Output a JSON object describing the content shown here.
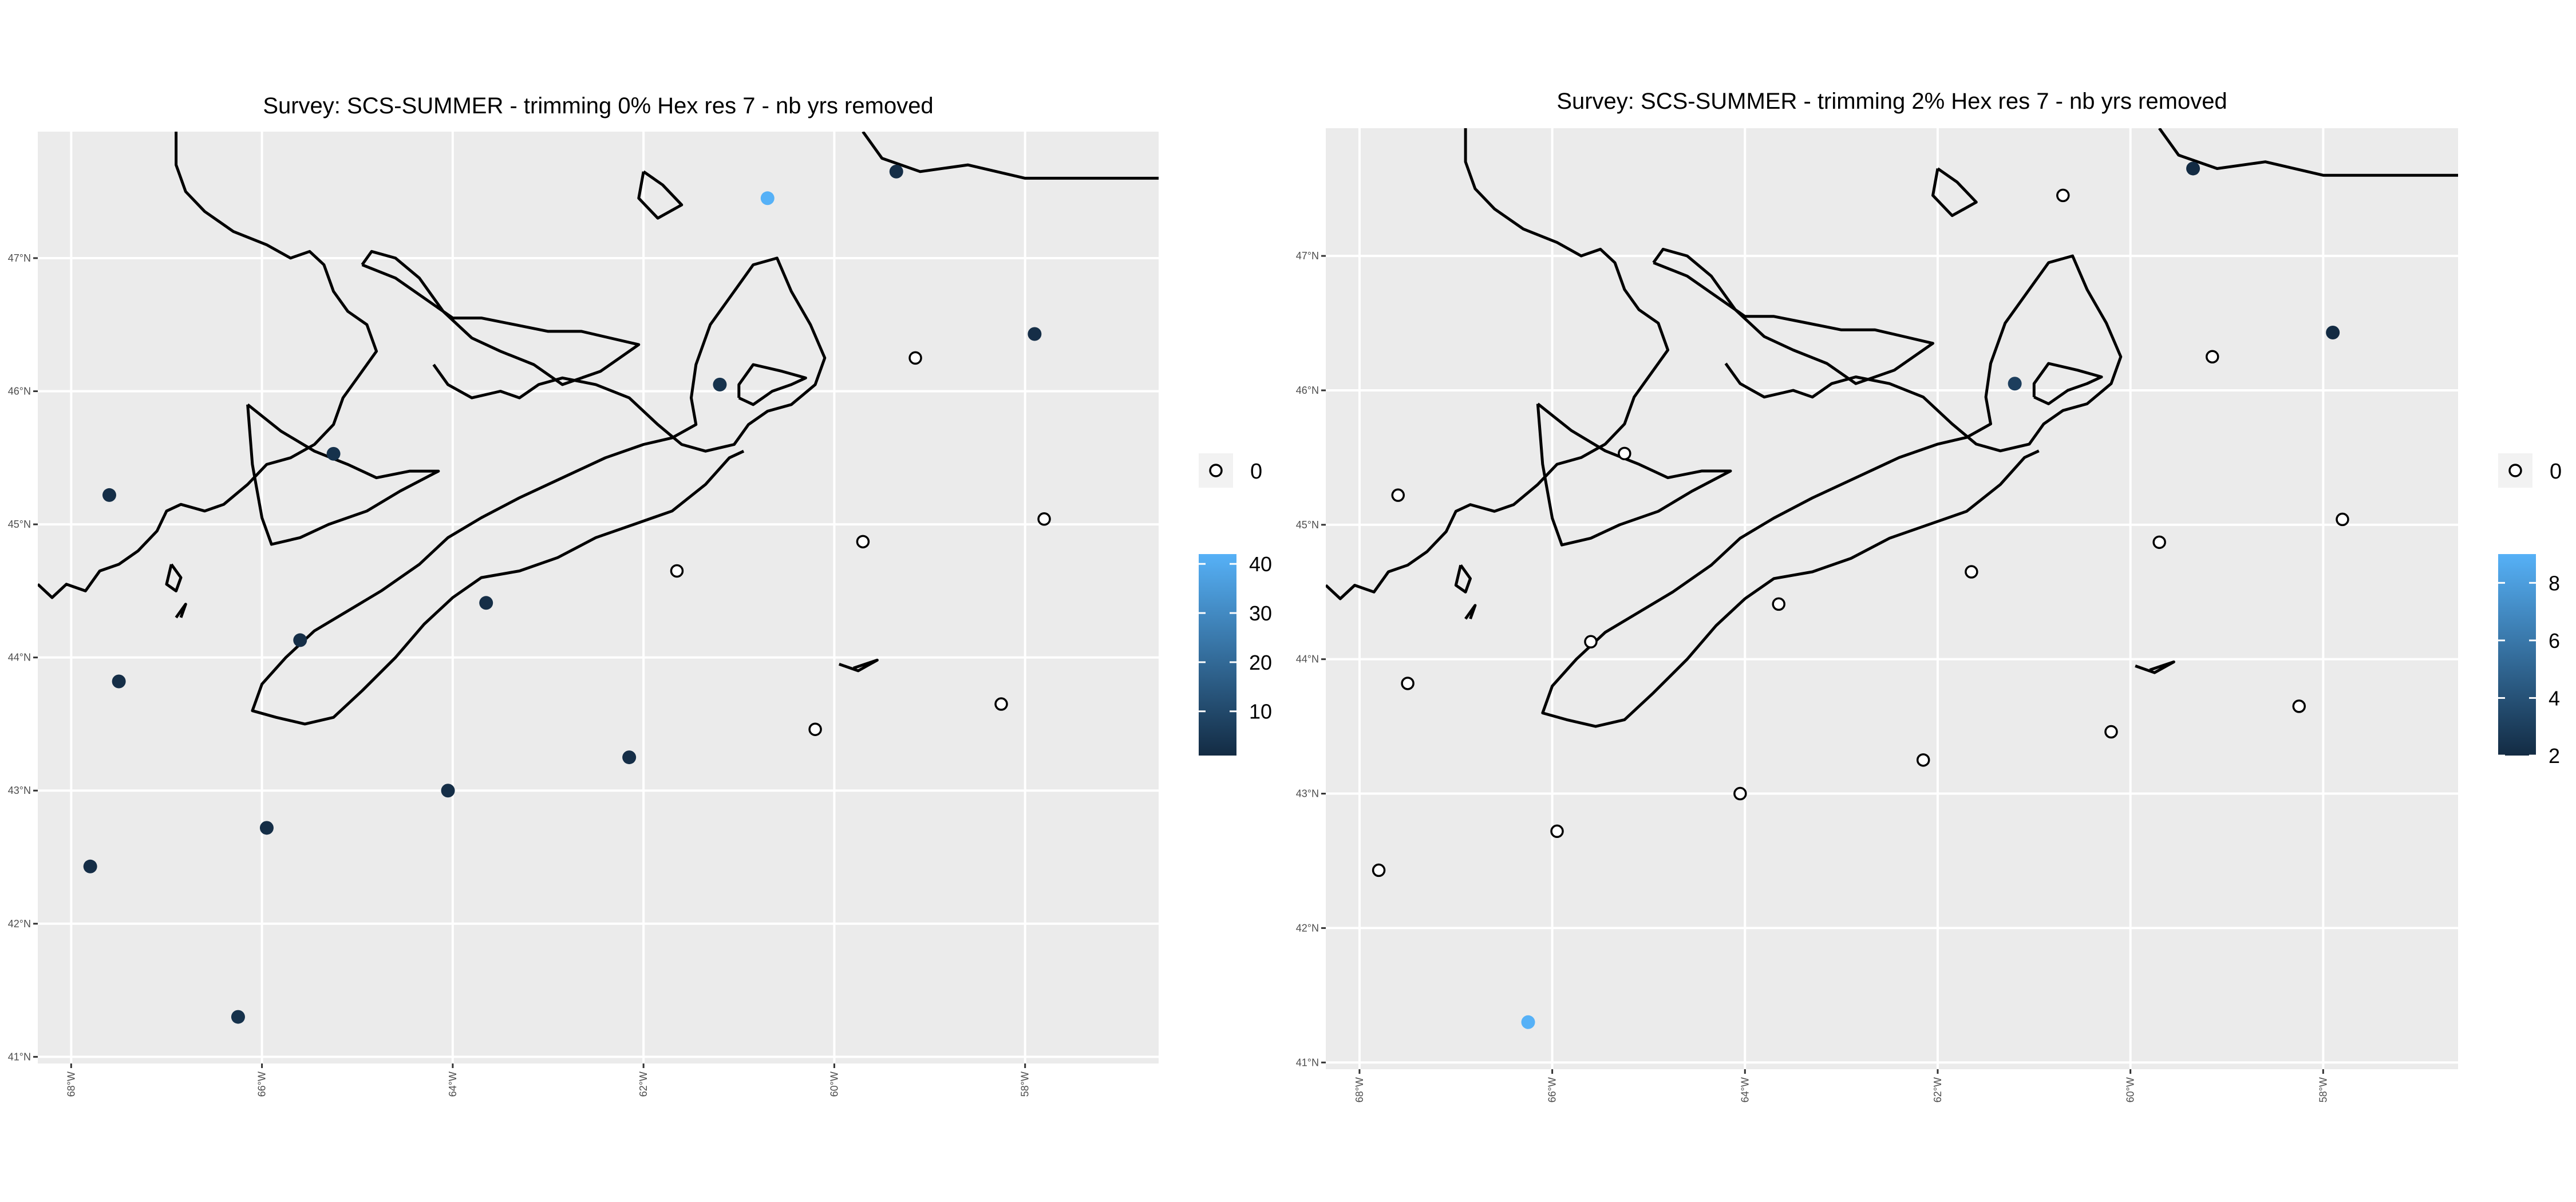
{
  "colors": {
    "panel_bg": "#ebebeb",
    "grid": "#ffffff",
    "coast": "#000000",
    "low": "#132b43",
    "high": "#56b1f7",
    "zero_fill": "#ffffff"
  },
  "map_extent": {
    "lon": [
      -68.35,
      -56.6
    ],
    "lat": [
      40.95,
      47.95
    ]
  },
  "lon_ticks": [
    -68,
    -66,
    -64,
    -62,
    -60,
    -58
  ],
  "lon_labels": [
    "68°W",
    "66°W",
    "64°W",
    "62°W",
    "60°W",
    "58°W"
  ],
  "lat_ticks": [
    41,
    42,
    43,
    44,
    45,
    46,
    47
  ],
  "lat_labels": [
    "41°N",
    "42°N",
    "43°N",
    "44°N",
    "45°N",
    "46°N",
    "47°N"
  ],
  "coastlines": [
    [
      [
        -68.35,
        44.55
      ],
      [
        -68.2,
        44.45
      ],
      [
        -68.05,
        44.55
      ],
      [
        -67.85,
        44.5
      ],
      [
        -67.7,
        44.65
      ],
      [
        -67.5,
        44.7
      ],
      [
        -67.3,
        44.8
      ],
      [
        -67.1,
        44.95
      ],
      [
        -67.0,
        45.1
      ],
      [
        -66.85,
        45.15
      ],
      [
        -66.6,
        45.1
      ],
      [
        -66.4,
        45.15
      ],
      [
        -66.15,
        45.3
      ],
      [
        -65.95,
        45.45
      ],
      [
        -65.7,
        45.5
      ],
      [
        -65.45,
        45.6
      ],
      [
        -65.25,
        45.75
      ],
      [
        -65.15,
        45.95
      ],
      [
        -65.0,
        46.1
      ],
      [
        -64.8,
        46.3
      ],
      [
        -64.9,
        46.5
      ],
      [
        -65.1,
        46.6
      ],
      [
        -65.25,
        46.75
      ],
      [
        -65.35,
        46.95
      ],
      [
        -65.5,
        47.05
      ],
      [
        -65.7,
        47.0
      ],
      [
        -65.95,
        47.1
      ],
      [
        -66.3,
        47.2
      ],
      [
        -66.6,
        47.35
      ],
      [
        -66.8,
        47.5
      ],
      [
        -66.9,
        47.7
      ],
      [
        -66.9,
        47.95
      ]
    ],
    [
      [
        -64.2,
        46.2
      ],
      [
        -64.05,
        46.05
      ],
      [
        -63.8,
        45.95
      ],
      [
        -63.5,
        46.0
      ],
      [
        -63.3,
        45.95
      ],
      [
        -63.1,
        46.05
      ],
      [
        -62.85,
        46.1
      ],
      [
        -62.5,
        46.05
      ],
      [
        -62.15,
        45.95
      ],
      [
        -61.85,
        45.75
      ],
      [
        -61.6,
        45.6
      ],
      [
        -61.35,
        45.55
      ],
      [
        -61.05,
        45.6
      ],
      [
        -60.9,
        45.75
      ],
      [
        -60.7,
        45.85
      ],
      [
        -60.45,
        45.9
      ],
      [
        -60.2,
        46.05
      ],
      [
        -60.1,
        46.25
      ],
      [
        -60.25,
        46.5
      ],
      [
        -60.45,
        46.75
      ],
      [
        -60.6,
        47.0
      ],
      [
        -60.85,
        46.95
      ],
      [
        -61.05,
        46.75
      ],
      [
        -61.3,
        46.5
      ],
      [
        -61.45,
        46.2
      ],
      [
        -61.5,
        45.95
      ],
      [
        -61.45,
        45.75
      ],
      [
        -61.7,
        45.65
      ],
      [
        -62.0,
        45.6
      ],
      [
        -62.4,
        45.5
      ],
      [
        -62.85,
        45.35
      ],
      [
        -63.3,
        45.2
      ],
      [
        -63.7,
        45.05
      ],
      [
        -64.05,
        44.9
      ],
      [
        -64.35,
        44.7
      ],
      [
        -64.75,
        44.5
      ],
      [
        -65.1,
        44.35
      ],
      [
        -65.45,
        44.2
      ],
      [
        -65.75,
        44.0
      ],
      [
        -66.0,
        43.8
      ],
      [
        -66.1,
        43.6
      ],
      [
        -65.85,
        43.55
      ],
      [
        -65.55,
        43.5
      ],
      [
        -65.25,
        43.55
      ],
      [
        -64.95,
        43.75
      ],
      [
        -64.6,
        44.0
      ],
      [
        -64.3,
        44.25
      ],
      [
        -64.0,
        44.45
      ],
      [
        -63.7,
        44.6
      ],
      [
        -63.3,
        44.65
      ],
      [
        -62.9,
        44.75
      ],
      [
        -62.5,
        44.9
      ],
      [
        -62.1,
        45.0
      ],
      [
        -61.7,
        45.1
      ],
      [
        -61.35,
        45.3
      ],
      [
        -61.1,
        45.5
      ],
      [
        -60.95,
        45.55
      ]
    ],
    [
      [
        -64.95,
        46.95
      ],
      [
        -64.6,
        46.85
      ],
      [
        -64.3,
        46.7
      ],
      [
        -64.0,
        46.55
      ],
      [
        -63.7,
        46.55
      ],
      [
        -63.35,
        46.5
      ],
      [
        -63.0,
        46.45
      ],
      [
        -62.65,
        46.45
      ],
      [
        -62.35,
        46.4
      ],
      [
        -62.05,
        46.35
      ],
      [
        -62.45,
        46.15
      ],
      [
        -62.85,
        46.05
      ],
      [
        -63.15,
        46.2
      ],
      [
        -63.5,
        46.3
      ],
      [
        -63.8,
        46.4
      ],
      [
        -64.1,
        46.6
      ],
      [
        -64.35,
        46.85
      ],
      [
        -64.6,
        47.0
      ],
      [
        -64.85,
        47.05
      ],
      [
        -64.95,
        46.95
      ]
    ],
    [
      [
        -66.15,
        45.9
      ],
      [
        -65.8,
        45.7
      ],
      [
        -65.45,
        45.55
      ],
      [
        -65.1,
        45.45
      ],
      [
        -64.8,
        45.35
      ],
      [
        -64.45,
        45.4
      ],
      [
        -64.15,
        45.4
      ],
      [
        -64.55,
        45.25
      ],
      [
        -64.9,
        45.1
      ],
      [
        -65.3,
        45.0
      ],
      [
        -65.6,
        44.9
      ],
      [
        -65.9,
        44.85
      ],
      [
        -66.0,
        45.05
      ],
      [
        -66.1,
        45.45
      ],
      [
        -66.15,
        45.9
      ]
    ],
    [
      [
        -61.0,
        45.95
      ],
      [
        -60.85,
        45.9
      ],
      [
        -60.65,
        46.0
      ],
      [
        -60.45,
        46.05
      ],
      [
        -60.3,
        46.1
      ],
      [
        -60.55,
        46.15
      ],
      [
        -60.85,
        46.2
      ],
      [
        -61.0,
        46.05
      ],
      [
        -61.0,
        45.95
      ]
    ],
    [
      [
        -62.0,
        47.65
      ],
      [
        -61.8,
        47.55
      ],
      [
        -61.6,
        47.4
      ],
      [
        -61.85,
        47.3
      ],
      [
        -62.05,
        47.45
      ],
      [
        -62.0,
        47.65
      ]
    ],
    [
      [
        -59.7,
        47.95
      ],
      [
        -59.5,
        47.75
      ],
      [
        -59.1,
        47.65
      ],
      [
        -58.6,
        47.7
      ],
      [
        -58.0,
        47.6
      ],
      [
        -57.4,
        47.6
      ],
      [
        -56.9,
        47.6
      ],
      [
        -56.6,
        47.6
      ]
    ],
    [
      [
        -66.95,
        44.7
      ],
      [
        -67.0,
        44.55
      ],
      [
        -66.9,
        44.5
      ],
      [
        -66.85,
        44.6
      ],
      [
        -66.95,
        44.7
      ]
    ],
    [
      [
        -59.95,
        43.95
      ],
      [
        -59.75,
        43.9
      ],
      [
        -59.55,
        43.98
      ],
      [
        -59.8,
        43.92
      ]
    ],
    [
      [
        -66.9,
        44.3
      ],
      [
        -66.8,
        44.4
      ],
      [
        -66.85,
        44.3
      ]
    ]
  ],
  "panels": [
    {
      "title": "Survey: SCS-SUMMER - trimming 0% Hex res 7 - nb yrs removed",
      "zero_label": "0",
      "colorbar_limits": [
        1,
        42
      ],
      "colorbar_ticks": [
        10,
        20,
        30,
        40
      ],
      "colorbar_labels": [
        "10",
        "20",
        "30",
        "40"
      ],
      "points": [
        {
          "lon": -59.35,
          "lat": 47.65,
          "value": 2
        },
        {
          "lon": -60.7,
          "lat": 47.45,
          "value": 42
        },
        {
          "lon": -57.9,
          "lat": 46.43,
          "value": 2
        },
        {
          "lon": -59.15,
          "lat": 46.25,
          "value": 0
        },
        {
          "lon": -61.2,
          "lat": 46.05,
          "value": 3
        },
        {
          "lon": -65.25,
          "lat": 45.53,
          "value": 3
        },
        {
          "lon": -67.6,
          "lat": 45.22,
          "value": 2
        },
        {
          "lon": -57.8,
          "lat": 45.04,
          "value": 0
        },
        {
          "lon": -59.7,
          "lat": 44.87,
          "value": 0
        },
        {
          "lon": -61.65,
          "lat": 44.65,
          "value": 0
        },
        {
          "lon": -63.65,
          "lat": 44.41,
          "value": 2
        },
        {
          "lon": -65.6,
          "lat": 44.13,
          "value": 2
        },
        {
          "lon": -67.5,
          "lat": 43.82,
          "value": 2
        },
        {
          "lon": -58.25,
          "lat": 43.65,
          "value": 0
        },
        {
          "lon": -60.2,
          "lat": 43.46,
          "value": 0
        },
        {
          "lon": -62.15,
          "lat": 43.25,
          "value": 2
        },
        {
          "lon": -64.05,
          "lat": 43.0,
          "value": 2
        },
        {
          "lon": -65.95,
          "lat": 42.72,
          "value": 2
        },
        {
          "lon": -67.8,
          "lat": 42.43,
          "value": 2
        },
        {
          "lon": -66.25,
          "lat": 41.3,
          "value": 3
        }
      ]
    },
    {
      "title": "Survey: SCS-SUMMER - trimming 2% Hex res 7 - nb yrs removed",
      "zero_label": "0",
      "colorbar_limits": [
        2,
        9
      ],
      "colorbar_ticks": [
        2,
        4,
        6,
        8
      ],
      "colorbar_labels": [
        "2",
        "4",
        "6",
        "8"
      ],
      "points": [
        {
          "lon": -59.35,
          "lat": 47.65,
          "value": 2
        },
        {
          "lon": -60.7,
          "lat": 47.45,
          "value": 0
        },
        {
          "lon": -57.9,
          "lat": 46.43,
          "value": 2
        },
        {
          "lon": -59.15,
          "lat": 46.25,
          "value": 0
        },
        {
          "lon": -61.2,
          "lat": 46.05,
          "value": 3
        },
        {
          "lon": -65.25,
          "lat": 45.53,
          "value": 0
        },
        {
          "lon": -67.6,
          "lat": 45.22,
          "value": 0
        },
        {
          "lon": -57.8,
          "lat": 45.04,
          "value": 0
        },
        {
          "lon": -59.7,
          "lat": 44.87,
          "value": 0
        },
        {
          "lon": -61.65,
          "lat": 44.65,
          "value": 0
        },
        {
          "lon": -63.65,
          "lat": 44.41,
          "value": 0
        },
        {
          "lon": -65.6,
          "lat": 44.13,
          "value": 0
        },
        {
          "lon": -67.5,
          "lat": 43.82,
          "value": 0
        },
        {
          "lon": -58.25,
          "lat": 43.65,
          "value": 0
        },
        {
          "lon": -60.2,
          "lat": 43.46,
          "value": 0
        },
        {
          "lon": -62.15,
          "lat": 43.25,
          "value": 0
        },
        {
          "lon": -64.05,
          "lat": 43.0,
          "value": 0
        },
        {
          "lon": -65.95,
          "lat": 42.72,
          "value": 0
        },
        {
          "lon": -67.8,
          "lat": 42.43,
          "value": 0
        },
        {
          "lon": -66.25,
          "lat": 41.3,
          "value": 9
        }
      ]
    }
  ]
}
